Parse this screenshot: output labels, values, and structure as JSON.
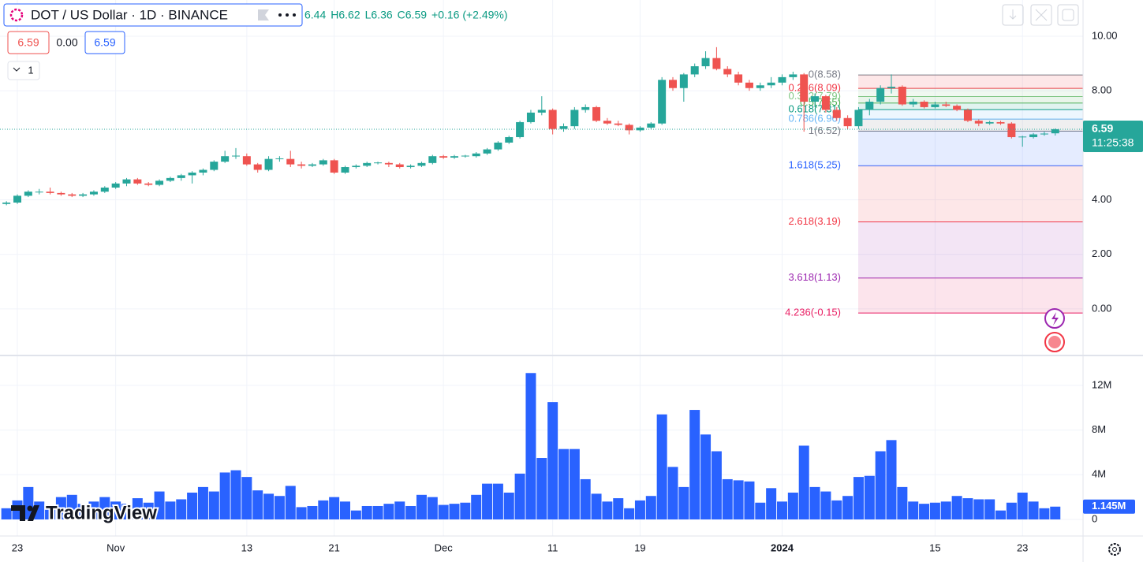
{
  "header": {
    "title": "DOT / US Dollar · 1D · BINANCE",
    "ohlc": [
      "6.44",
      "H6.62",
      "L6.36",
      "C6.59",
      "+0.16 (+2.49%)"
    ],
    "sell": "6.59",
    "spread": "0.00",
    "buy": "6.59",
    "indicator_count": "1"
  },
  "logo": "TradingView",
  "chart_data": {
    "type": "candlestick",
    "up_color": "#26a69a",
    "down_color": "#ef5350",
    "grid": true,
    "candles": [
      [
        3.85,
        3.95,
        3.8,
        3.9
      ],
      [
        3.9,
        4.2,
        3.85,
        4.15
      ],
      [
        4.15,
        4.35,
        4.1,
        4.3
      ],
      [
        4.3,
        4.4,
        4.2,
        4.3
      ],
      [
        4.3,
        4.45,
        4.2,
        4.25
      ],
      [
        4.25,
        4.3,
        4.15,
        4.2
      ],
      [
        4.2,
        4.25,
        4.1,
        4.15
      ],
      [
        4.15,
        4.25,
        4.1,
        4.2
      ],
      [
        4.2,
        4.35,
        4.15,
        4.3
      ],
      [
        4.3,
        4.5,
        4.25,
        4.45
      ],
      [
        4.45,
        4.65,
        4.4,
        4.6
      ],
      [
        4.6,
        4.8,
        4.5,
        4.75
      ],
      [
        4.75,
        4.8,
        4.55,
        4.6
      ],
      [
        4.6,
        4.65,
        4.5,
        4.55
      ],
      [
        4.55,
        4.75,
        4.5,
        4.7
      ],
      [
        4.7,
        4.85,
        4.65,
        4.8
      ],
      [
        4.8,
        4.95,
        4.7,
        4.9
      ],
      [
        4.9,
        5.05,
        4.6,
        5.0
      ],
      [
        5.0,
        5.15,
        4.9,
        5.1
      ],
      [
        5.1,
        5.45,
        5.05,
        5.4
      ],
      [
        5.4,
        5.8,
        5.35,
        5.6
      ],
      [
        5.6,
        5.9,
        5.5,
        5.62
      ],
      [
        5.6,
        5.7,
        5.25,
        5.3
      ],
      [
        5.3,
        5.35,
        5.0,
        5.1
      ],
      [
        5.1,
        5.6,
        5.05,
        5.5
      ],
      [
        5.5,
        5.6,
        5.4,
        5.52
      ],
      [
        5.5,
        5.8,
        5.2,
        5.3
      ],
      [
        5.3,
        5.4,
        5.15,
        5.25
      ],
      [
        5.25,
        5.35,
        5.2,
        5.3
      ],
      [
        5.3,
        5.5,
        5.25,
        5.45
      ],
      [
        5.45,
        5.5,
        4.95,
        5.0
      ],
      [
        5.0,
        5.25,
        4.95,
        5.2
      ],
      [
        5.2,
        5.3,
        5.15,
        5.25
      ],
      [
        5.25,
        5.4,
        5.2,
        5.35
      ],
      [
        5.35,
        5.4,
        5.3,
        5.37
      ],
      [
        5.35,
        5.4,
        5.2,
        5.3
      ],
      [
        5.3,
        5.35,
        5.15,
        5.2
      ],
      [
        5.2,
        5.3,
        5.15,
        5.25
      ],
      [
        5.25,
        5.4,
        5.2,
        5.35
      ],
      [
        5.35,
        5.65,
        5.3,
        5.6
      ],
      [
        5.6,
        5.65,
        5.5,
        5.55
      ],
      [
        5.55,
        5.65,
        5.5,
        5.6
      ],
      [
        5.6,
        5.65,
        5.55,
        5.62
      ],
      [
        5.6,
        5.75,
        5.55,
        5.7
      ],
      [
        5.7,
        5.9,
        5.65,
        5.85
      ],
      [
        5.85,
        6.15,
        5.8,
        6.1
      ],
      [
        6.1,
        6.35,
        6.05,
        6.3
      ],
      [
        6.3,
        6.9,
        6.25,
        6.85
      ],
      [
        6.85,
        7.3,
        6.8,
        7.2
      ],
      [
        7.2,
        7.8,
        7.1,
        7.3
      ],
      [
        7.3,
        7.35,
        6.4,
        6.6
      ],
      [
        6.6,
        6.8,
        6.5,
        6.7
      ],
      [
        6.7,
        7.4,
        6.6,
        7.3
      ],
      [
        7.3,
        7.5,
        7.2,
        7.4
      ],
      [
        7.4,
        7.45,
        6.85,
        6.9
      ],
      [
        6.9,
        7.0,
        6.75,
        6.8
      ],
      [
        6.8,
        6.9,
        6.7,
        6.75
      ],
      [
        6.75,
        6.8,
        6.4,
        6.55
      ],
      [
        6.55,
        6.7,
        6.5,
        6.65
      ],
      [
        6.65,
        6.85,
        6.6,
        6.8
      ],
      [
        6.8,
        8.5,
        6.75,
        8.4
      ],
      [
        8.4,
        8.5,
        8.0,
        8.1
      ],
      [
        8.1,
        8.65,
        7.6,
        8.6
      ],
      [
        8.6,
        9.0,
        8.5,
        8.9
      ],
      [
        8.9,
        9.45,
        8.8,
        9.2
      ],
      [
        9.2,
        9.6,
        8.75,
        8.8
      ],
      [
        8.8,
        8.9,
        8.5,
        8.6
      ],
      [
        8.6,
        8.7,
        8.2,
        8.3
      ],
      [
        8.3,
        8.4,
        8.0,
        8.1
      ],
      [
        8.1,
        8.3,
        8.0,
        8.2
      ],
      [
        8.2,
        8.5,
        8.1,
        8.3
      ],
      [
        8.3,
        8.6,
        8.2,
        8.5
      ],
      [
        8.5,
        8.7,
        8.4,
        8.6
      ],
      [
        8.6,
        8.65,
        6.5,
        7.6
      ],
      [
        7.6,
        7.9,
        7.4,
        7.8
      ],
      [
        7.8,
        7.85,
        7.2,
        7.3
      ],
      [
        7.3,
        7.4,
        6.9,
        7.0
      ],
      [
        7.0,
        7.1,
        6.6,
        6.7
      ],
      [
        6.7,
        7.4,
        6.6,
        7.3
      ],
      [
        7.3,
        7.7,
        7.1,
        7.6
      ],
      [
        7.6,
        8.2,
        7.5,
        8.1
      ],
      [
        8.1,
        8.6,
        7.9,
        8.15
      ],
      [
        8.15,
        8.2,
        7.45,
        7.5
      ],
      [
        7.5,
        7.7,
        7.4,
        7.6
      ],
      [
        7.6,
        7.65,
        7.35,
        7.4
      ],
      [
        7.4,
        7.6,
        7.35,
        7.5
      ],
      [
        7.5,
        7.6,
        7.4,
        7.45
      ],
      [
        7.45,
        7.5,
        7.25,
        7.3
      ],
      [
        7.3,
        7.35,
        6.85,
        6.9
      ],
      [
        6.9,
        6.95,
        6.7,
        6.8
      ],
      [
        6.8,
        6.9,
        6.75,
        6.85
      ],
      [
        6.85,
        6.9,
        6.75,
        6.8
      ],
      [
        6.8,
        6.85,
        6.25,
        6.3
      ],
      [
        6.3,
        6.35,
        5.95,
        6.32
      ],
      [
        6.3,
        6.45,
        6.25,
        6.4
      ],
      [
        6.4,
        6.5,
        6.35,
        6.43
      ],
      [
        6.44,
        6.62,
        6.36,
        6.59
      ]
    ],
    "ylim": [
      -1.68,
      11.33
    ],
    "yticks": [
      {
        "value": 10,
        "label": "10.00"
      },
      {
        "value": 8,
        "label": "8.00"
      },
      {
        "value": 4,
        "label": "4.00"
      },
      {
        "value": 2,
        "label": "2.00"
      },
      {
        "value": 0,
        "label": "0.00"
      }
    ],
    "last_price": {
      "value": 6.59,
      "label": "6.59",
      "countdown": "11:25:38"
    },
    "xticks": [
      {
        "value": 1,
        "label": "23"
      },
      {
        "value": 10,
        "label": "Nov"
      },
      {
        "value": 22,
        "label": "13"
      },
      {
        "value": 30,
        "label": "21"
      },
      {
        "value": 40,
        "label": "Dec"
      },
      {
        "value": 50,
        "label": "11"
      },
      {
        "value": 58,
        "label": "19"
      },
      {
        "value": 71,
        "label": "2024"
      },
      {
        "value": 85,
        "label": "15"
      },
      {
        "value": 93,
        "label": "23"
      }
    ],
    "fib_levels": [
      {
        "label": "0(8.58)",
        "value": 8.58,
        "color": "#787b86"
      },
      {
        "label": "0.236(8.09)",
        "value": 8.09,
        "color": "#f23645"
      },
      {
        "label": "0.382(7.79)",
        "value": 7.79,
        "color": "#81c784"
      },
      {
        "label": "0.5(7.55)",
        "value": 7.55,
        "color": "#4caf50"
      },
      {
        "label": "0.618(7.31)",
        "value": 7.31,
        "color": "#089981"
      },
      {
        "label": "0.786(6.96)",
        "value": 6.96,
        "color": "#64b5f6"
      },
      {
        "label": "1(6.52)",
        "value": 6.52,
        "color": "#787b86"
      },
      {
        "label": "1.618(5.25)",
        "value": 5.25,
        "color": "#2962ff"
      },
      {
        "label": "2.618(3.19)",
        "value": 3.19,
        "color": "#f23645"
      },
      {
        "label": "3.618(1.13)",
        "value": 1.13,
        "color": "#9c27b0"
      },
      {
        "label": "4.236(-0.15)",
        "value": -0.15,
        "color": "#e91e63"
      }
    ],
    "volume": {
      "color": "#2962ff",
      "values": [
        1.0,
        1.7,
        2.9,
        1.6,
        1.3,
        2.0,
        2.2,
        1.4,
        1.6,
        2.0,
        1.6,
        1.4,
        1.9,
        1.5,
        2.5,
        1.6,
        1.8,
        2.4,
        2.9,
        2.5,
        4.2,
        4.4,
        3.8,
        2.6,
        2.3,
        2.1,
        3.0,
        1.1,
        1.2,
        1.7,
        2.0,
        1.6,
        0.8,
        1.2,
        1.2,
        1.4,
        1.6,
        1.2,
        2.2,
        2.0,
        1.3,
        1.4,
        1.5,
        2.2,
        3.2,
        3.2,
        2.4,
        4.1,
        13.1,
        5.5,
        10.5,
        6.3,
        6.3,
        3.6,
        2.3,
        1.6,
        1.9,
        1.0,
        1.7,
        2.1,
        9.4,
        4.7,
        2.9,
        9.8,
        7.6,
        6.1,
        3.6,
        3.5,
        3.4,
        1.5,
        2.8,
        1.6,
        2.4,
        6.6,
        2.9,
        2.5,
        1.7,
        2.1,
        3.8,
        3.9,
        6.1,
        7.1,
        2.9,
        1.6,
        1.4,
        1.5,
        1.6,
        2.1,
        1.9,
        1.8,
        1.8,
        0.8,
        1.5,
        2.4,
        1.6,
        1.0,
        1.145
      ],
      "last_label": "1.145M",
      "ylim": [
        0,
        14.6
      ],
      "yticks": [
        0,
        {
          "value": 4,
          "label": "4M"
        },
        {
          "value": 8,
          "label": "8M"
        },
        {
          "value": 12,
          "label": "12M"
        }
      ]
    }
  }
}
